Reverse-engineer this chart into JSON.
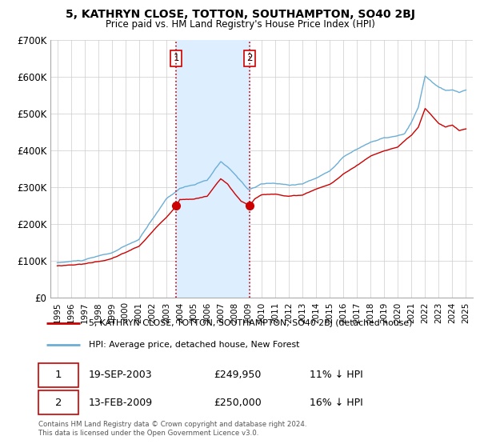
{
  "title": "5, KATHRYN CLOSE, TOTTON, SOUTHAMPTON, SO40 2BJ",
  "subtitle": "Price paid vs. HM Land Registry's House Price Index (HPI)",
  "legend_line1": "5, KATHRYN CLOSE, TOTTON, SOUTHAMPTON, SO40 2BJ (detached house)",
  "legend_line2": "HPI: Average price, detached house, New Forest",
  "transaction1_date": "19-SEP-2003",
  "transaction1_price": "£249,950",
  "transaction1_hpi": "11% ↓ HPI",
  "transaction2_date": "13-FEB-2009",
  "transaction2_price": "£250,000",
  "transaction2_hpi": "16% ↓ HPI",
  "footer": "Contains HM Land Registry data © Crown copyright and database right 2024.\nThis data is licensed under the Open Government Licence v3.0.",
  "hpi_color": "#6baed6",
  "price_color": "#cc0000",
  "shade_color": "#ddeeff",
  "marker1_x": 2003.72,
  "marker1_y": 249950,
  "marker2_x": 2009.12,
  "marker2_y": 250000,
  "vline1_x": 2003.72,
  "vline2_x": 2009.12,
  "ylim_min": 0,
  "ylim_max": 700000,
  "xlim_min": 1994.5,
  "xlim_max": 2025.5,
  "background_color": "#f0f0f0",
  "yticks": [
    0,
    100000,
    200000,
    300000,
    400000,
    500000,
    600000,
    700000
  ],
  "ytick_labels": [
    "£0",
    "£100K",
    "£200K",
    "£300K",
    "£400K",
    "£500K",
    "£600K",
    "£700K"
  ],
  "xticks": [
    1995,
    1996,
    1997,
    1998,
    1999,
    2000,
    2001,
    2002,
    2003,
    2004,
    2005,
    2006,
    2007,
    2008,
    2009,
    2010,
    2011,
    2012,
    2013,
    2014,
    2015,
    2016,
    2017,
    2018,
    2019,
    2020,
    2021,
    2022,
    2023,
    2024,
    2025
  ]
}
